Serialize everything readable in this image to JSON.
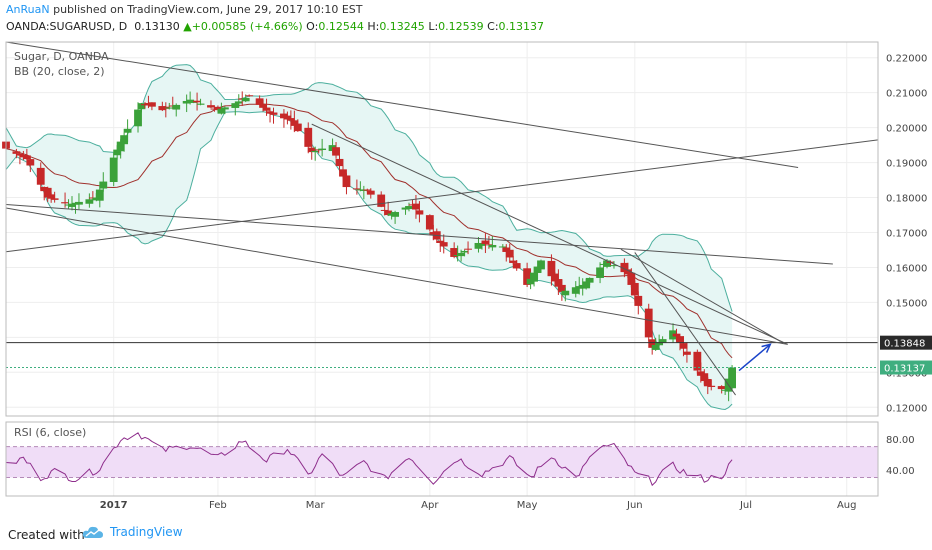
{
  "header": {
    "author": "AnRuaN",
    "published": " published on TradingView.com, June 29, 2017 10:10 EST",
    "symbol": "OANDA:SUGARUSD, D",
    "last": "0.13130",
    "change": "+0.00585 (+4.66%)",
    "o_label": "O:",
    "o": "0.12544",
    "h_label": "H:",
    "h": "0.13245",
    "l_label": "L:",
    "l": "0.12539",
    "c_label": "C:",
    "c": "0.13137"
  },
  "legend": {
    "main_title": "Sugar, D, OANDA",
    "bb_title": "BB (20, close, 2)",
    "rsi_title": "RSI (6, close)"
  },
  "footer": {
    "created_with": "Created with",
    "brand": "TradingView"
  },
  "colors": {
    "bull": "#3ba13a",
    "bear": "#c62828",
    "bb_band": "#4caf9e",
    "bb_fill": "#e6f6f4",
    "bb_basis": "#a0312d",
    "rsi_line": "#8e2e8c",
    "rsi_fill": "#f0ddf7",
    "trend": "#555555",
    "arrow": "#1a44c9",
    "price_label": "#2a2a2a",
    "close_label": "#3fae7f"
  },
  "chart_data": [
    {
      "type": "candlestick",
      "title": "Sugar, D, OANDA",
      "indicator": "BB (20, close, 2)",
      "y_ticks": [
        0.12,
        0.13,
        0.14,
        0.15,
        0.16,
        0.17,
        0.18,
        0.19,
        0.2,
        0.21,
        0.22
      ],
      "y_tick_labels": [
        "0.12000",
        "0.13000",
        "",
        "0.15000",
        "0.16000",
        "0.17000",
        "0.18000",
        "0.19000",
        "0.20000",
        "0.21000",
        "0.22000"
      ],
      "ylim": [
        0.1175,
        0.2245
      ],
      "x_tick_labels": [
        "2017",
        "Feb",
        "Mar",
        "Apr",
        "May",
        "Jun",
        "Jul",
        "Aug"
      ],
      "x_ticks": [
        "2017-01-02",
        "2017-02-01",
        "2017-03-01",
        "2017-04-03",
        "2017-05-01",
        "2017-06-01",
        "2017-07-03",
        "2017-08-01"
      ],
      "xlim": [
        "2016-12-02",
        "2017-08-10"
      ],
      "price_level_labels": [
        {
          "value": 0.13848,
          "label": "0.13848"
        },
        {
          "value": 0.13137,
          "label": "0.13137"
        }
      ],
      "horizontal_line": 0.13848,
      "last_close_line": 0.13137,
      "close_anchors": [
        [
          "2016-12-02",
          0.194
        ],
        [
          "2016-12-08",
          0.191
        ],
        [
          "2016-12-14",
          0.18
        ],
        [
          "2016-12-20",
          0.178
        ],
        [
          "2016-12-28",
          0.18
        ],
        [
          "2017-01-04",
          0.196
        ],
        [
          "2017-01-10",
          0.207
        ],
        [
          "2017-01-16",
          0.205
        ],
        [
          "2017-01-24",
          0.208
        ],
        [
          "2017-02-01",
          0.205
        ],
        [
          "2017-02-06",
          0.207
        ],
        [
          "2017-02-10",
          0.209
        ],
        [
          "2017-02-16",
          0.204
        ],
        [
          "2017-02-22",
          0.202
        ],
        [
          "2017-02-28",
          0.193
        ],
        [
          "2017-03-06",
          0.195
        ],
        [
          "2017-03-10",
          0.183
        ],
        [
          "2017-03-16",
          0.182
        ],
        [
          "2017-03-22",
          0.175
        ],
        [
          "2017-03-29",
          0.178
        ],
        [
          "2017-04-05",
          0.168
        ],
        [
          "2017-04-10",
          0.163
        ],
        [
          "2017-04-17",
          0.167
        ],
        [
          "2017-04-24",
          0.166
        ],
        [
          "2017-05-01",
          0.155
        ],
        [
          "2017-05-05",
          0.162
        ],
        [
          "2017-05-11",
          0.153
        ],
        [
          "2017-05-17",
          0.155
        ],
        [
          "2017-05-24",
          0.162
        ],
        [
          "2017-05-30",
          0.158
        ],
        [
          "2017-06-02",
          0.149
        ],
        [
          "2017-06-06",
          0.137
        ],
        [
          "2017-06-12",
          0.142
        ],
        [
          "2017-06-16",
          0.135
        ],
        [
          "2017-06-22",
          0.126
        ],
        [
          "2017-06-27",
          0.125
        ],
        [
          "2017-06-29",
          0.13137
        ]
      ],
      "trendlines": [
        {
          "from": [
            "2016-12-02",
            0.2245
          ],
          "to": [
            "2017-07-18",
            0.1886
          ]
        },
        {
          "from": [
            "2016-12-02",
            0.1645
          ],
          "to": [
            "2017-08-10",
            0.1965
          ]
        },
        {
          "from": [
            "2016-12-02",
            0.178
          ],
          "to": [
            "2017-07-28",
            0.161
          ]
        },
        {
          "from": [
            "2016-12-02",
            0.177
          ],
          "to": [
            "2017-07-15",
            0.138
          ]
        },
        {
          "from": [
            "2017-02-28",
            0.201
          ],
          "to": [
            "2017-07-15",
            0.138
          ]
        },
        {
          "from": [
            "2017-05-28",
            0.1652
          ],
          "to": [
            "2017-07-13",
            0.1388
          ]
        },
        {
          "from": [
            "2017-06-01",
            0.1643
          ],
          "to": [
            "2017-06-30",
            0.1235
          ]
        }
      ],
      "arrow": {
        "from": [
          "2017-07-01",
          0.1305
        ],
        "to": [
          "2017-07-10",
          0.138
        ]
      }
    },
    {
      "type": "line",
      "title": "RSI (6, close)",
      "y_ticks": [
        40,
        80
      ],
      "y_tick_labels": [
        "40.00",
        "80.00"
      ],
      "ylim": [
        6,
        102
      ],
      "bands": [
        30,
        70
      ],
      "rsi_anchors": [
        [
          "2016-12-02",
          45
        ],
        [
          "2016-12-07",
          55
        ],
        [
          "2016-12-12",
          30
        ],
        [
          "2016-12-16",
          38
        ],
        [
          "2016-12-22",
          28
        ],
        [
          "2016-12-29",
          42
        ],
        [
          "2017-01-04",
          80
        ],
        [
          "2017-01-09",
          88
        ],
        [
          "2017-01-16",
          65
        ],
        [
          "2017-01-24",
          72
        ],
        [
          "2017-02-01",
          55
        ],
        [
          "2017-02-08",
          78
        ],
        [
          "2017-02-15",
          52
        ],
        [
          "2017-02-21",
          68
        ],
        [
          "2017-02-27",
          32
        ],
        [
          "2017-03-03",
          60
        ],
        [
          "2017-03-09",
          30
        ],
        [
          "2017-03-15",
          50
        ],
        [
          "2017-03-21",
          28
        ],
        [
          "2017-03-28",
          58
        ],
        [
          "2017-04-04",
          25
        ],
        [
          "2017-04-11",
          55
        ],
        [
          "2017-04-18",
          35
        ],
        [
          "2017-04-26",
          55
        ],
        [
          "2017-05-02",
          30
        ],
        [
          "2017-05-08",
          58
        ],
        [
          "2017-05-15",
          30
        ],
        [
          "2017-05-22",
          70
        ],
        [
          "2017-05-26",
          70
        ],
        [
          "2017-06-01",
          35
        ],
        [
          "2017-06-06",
          25
        ],
        [
          "2017-06-12",
          45
        ],
        [
          "2017-06-16",
          35
        ],
        [
          "2017-06-21",
          28
        ],
        [
          "2017-06-26",
          32
        ],
        [
          "2017-06-29",
          50
        ]
      ]
    }
  ]
}
